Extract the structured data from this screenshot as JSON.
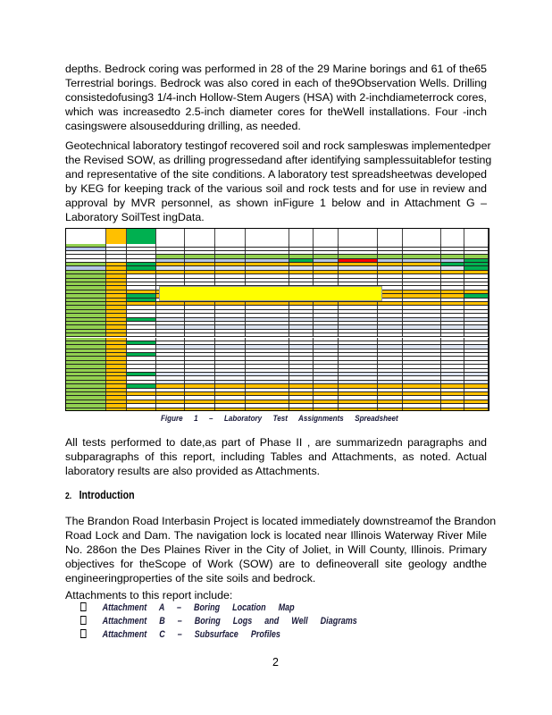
{
  "paragraphs": [
    [
      "depths. Bedrock coring was performed in 28 of the 29 Marine borings and 61 of the65",
      "Terrestrial borings.  Bedrock was also cored in each of the9Observation Wells.  Drilling",
      "consistedofusing3  1/4-inch Hollow-Stem Augers (HSA) with 2-inchdiameterrock cores,",
      "which was increasedto 2.5-inch   diameter cores for theWell installations. Four -inch",
      "casingswere alsousedduring drilling, as needed."
    ],
    [
      "Geotechnical laboratory testingof recovered soil and rock sampleswas implementedper",
      "the Revised SOW, as drilling progressedand after identifying samplessuitablefor testing",
      "and representative of the site conditions. A laboratory test spreadsheetwas developed",
      "by KEG for keeping track of the various soil and rock tests and for use in review and",
      "approval by MVR  personnel, as shown inFigure 1 below and   in Attachment G –",
      "Laboratory SoilTest ingData."
    ],
    [
      "All tests performed to date,as part of Phase II , are summarizedn   paragraphs and",
      "subparagraphs of this report, including Tables and Attachments,  as noted. Actual",
      "laboratory results are also provided as Attachments."
    ],
    [
      "The Brandon Road Interbasin Project is located immediately downstreamof the Brandon",
      "Road Lock and Dam.  The  navigation lock is located near Illinois Waterway  River Mile",
      "No. 286on the Des Plaines River  in the City   of Joliet, in Will County, Illinois.   Primary",
      "objectives for theScope of Work  (SOW)  are  to  defineoverall  site geology  andthe",
      "engineeringproperties of the site soils and bedrock."
    ],
    [
      "Attachments to this report include:"
    ]
  ],
  "section": {
    "number": "2.",
    "title": "Introduction"
  },
  "attachments": [
    "Attachment A – Boring Location Map",
    "Attachment B – Boring Logs and Well Diagrams",
    "Attachment C – Subsurface Profiles"
  ],
  "figure": {
    "caption": "Figure 1 – Laboratory Test Assignments Spreadsheet",
    "colors": {
      "green": "#92d050",
      "blue": "#b4c6e7",
      "orange": "#ffc000",
      "dkgreen": "#00b050",
      "red": "#ff0000",
      "yellow": "#ffff00",
      "light": "#dce3f0"
    },
    "rows": [
      "o",
      "b",
      "o",
      "w",
      "w",
      "w",
      "w",
      "o",
      "o",
      "w",
      "o",
      "w",
      "w",
      "w",
      "b",
      "w",
      "b",
      "w",
      "w",
      "w",
      "w",
      "b",
      "w",
      "w",
      "w",
      "w",
      "w",
      "w",
      "b",
      "w",
      "b",
      "o",
      "w",
      "o",
      "w",
      "o",
      "w",
      "o"
    ]
  },
  "page_number": "2"
}
